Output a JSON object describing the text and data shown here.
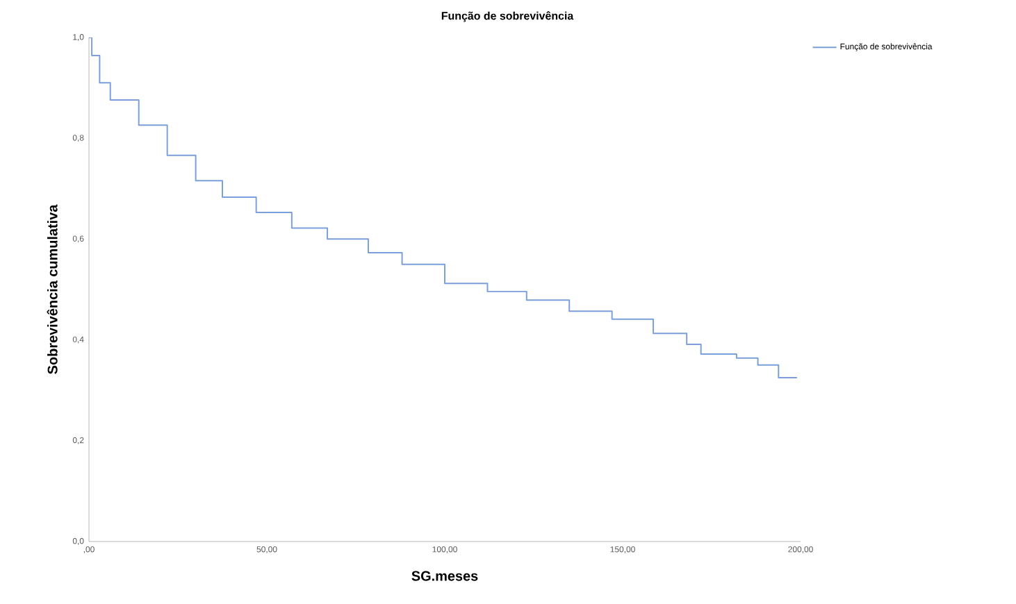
{
  "chart_data": {
    "type": "step",
    "title": "Função de sobrevivência",
    "xlabel": "SG.meses",
    "ylabel": "Sobrevivência cumulativa",
    "xlim": [
      0,
      200
    ],
    "ylim": [
      0,
      1.0
    ],
    "xticks": [
      {
        "value": 0,
        "label": ",00"
      },
      {
        "value": 50,
        "label": "50,00"
      },
      {
        "value": 100,
        "label": "100,00"
      },
      {
        "value": 150,
        "label": "150,00"
      },
      {
        "value": 200,
        "label": "200,00"
      }
    ],
    "yticks": [
      {
        "value": 0,
        "label": "0,0"
      },
      {
        "value": 0.2,
        "label": "0,2"
      },
      {
        "value": 0.4,
        "label": "0,4"
      },
      {
        "value": 0.6,
        "label": "0,6"
      },
      {
        "value": 0.8,
        "label": "0,8"
      },
      {
        "value": 1.0,
        "label": "1,0"
      }
    ],
    "grid": false,
    "legend": "top right",
    "series": [
      {
        "name": "Função de sobrevivência",
        "color": "#7b9fdc",
        "x": [
          0,
          0.8,
          3,
          6,
          14,
          22,
          30,
          37.5,
          47,
          57,
          67,
          78.5,
          88,
          100,
          112,
          123,
          135,
          147,
          158.6,
          168,
          172,
          182,
          188,
          193.8,
          199
        ],
        "values": [
          1.0,
          0.964,
          0.91,
          0.876,
          0.826,
          0.766,
          0.716,
          0.683,
          0.653,
          0.622,
          0.6,
          0.573,
          0.55,
          0.512,
          0.496,
          0.479,
          0.457,
          0.441,
          0.413,
          0.391,
          0.372,
          0.364,
          0.35,
          0.325,
          0.325
        ]
      }
    ]
  }
}
